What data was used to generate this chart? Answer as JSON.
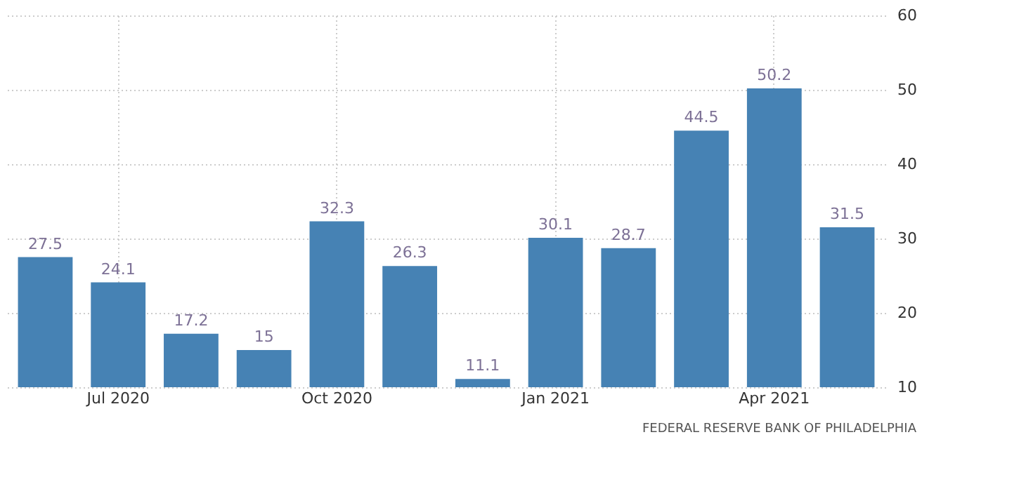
{
  "chart_data": {
    "type": "bar",
    "categories": [
      null,
      "Jul 2020",
      null,
      null,
      "Oct 2020",
      null,
      null,
      "Jan 2021",
      null,
      null,
      "Apr 2021",
      null
    ],
    "values": [
      27.5,
      24.1,
      17.2,
      15,
      32.3,
      26.3,
      11.1,
      30.1,
      28.7,
      44.5,
      50.2,
      31.5
    ],
    "color": "#4682b4",
    "ylim": [
      10,
      60
    ],
    "yticks": [
      10,
      20,
      30,
      40,
      50,
      60
    ],
    "grid": true,
    "data_labels": true,
    "annotations": [
      "FEDERAL RESERVE BANK OF PHILADELPHIA"
    ]
  }
}
